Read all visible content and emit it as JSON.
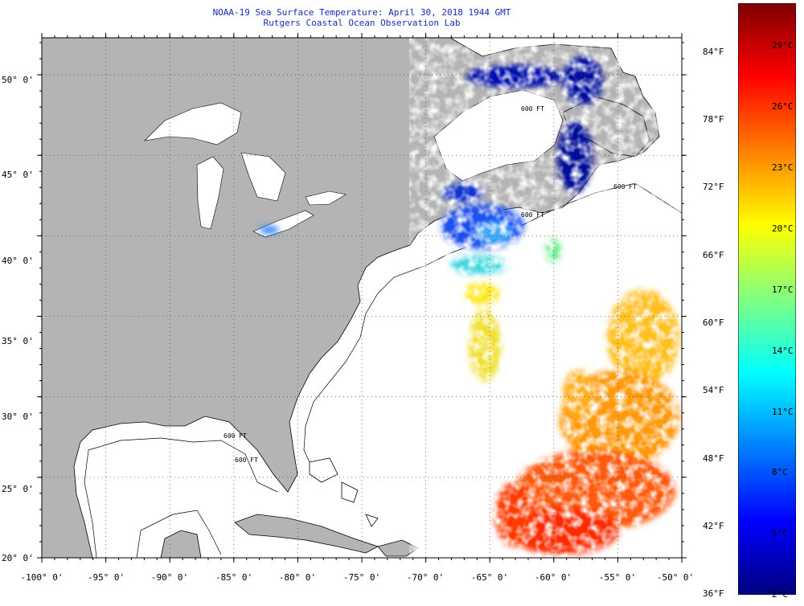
{
  "header": {
    "title_line1": "NOAA-19 Sea Surface Temperature:  April 30, 2018 1944 GMT",
    "title_line2": "Rutgers Coastal Ocean Observation Lab"
  },
  "map": {
    "extent": {
      "lon": [
        -100,
        -50
      ],
      "lat": [
        20,
        52.3
      ]
    },
    "lat_labels": [
      "50° 0'",
      "45° 0'",
      "40° 0'",
      "35° 0'",
      "30° 0'",
      "25° 0'",
      "20° 0'"
    ],
    "lat_values": [
      50,
      45,
      40,
      35,
      30,
      25,
      20
    ],
    "lon_labels": [
      "-100° 0'",
      "-95° 0'",
      "-90° 0'",
      "-85° 0'",
      "-80° 0'",
      "-75° 0'",
      "-70° 0'",
      "-65° 0'",
      "-60° 0'",
      "-55° 0'",
      "-50° 0'"
    ],
    "lon_values": [
      -100,
      -95,
      -90,
      -85,
      -80,
      -75,
      -70,
      -65,
      -60,
      -55,
      -50
    ],
    "colors": {
      "land": "#b4b4b4",
      "no_data": "#ffffff",
      "coast": "#000000",
      "grid": "#555555"
    },
    "isobath_labels": [
      "600 FT",
      "600 FT",
      "600 FT",
      "600 FT",
      "600 FT"
    ]
  },
  "colorbar": {
    "fahrenheit_labels": [
      "84°F",
      "78°F",
      "72°F",
      "66°F",
      "60°F",
      "54°F",
      "48°F",
      "42°F",
      "36°F"
    ],
    "fahrenheit_values": [
      84,
      78,
      72,
      66,
      60,
      54,
      48,
      42,
      36
    ],
    "celsius_labels": [
      "29°C",
      "26°C",
      "23°C",
      "20°C",
      "17°C",
      "14°C",
      "11°C",
      "8°C",
      "5°C",
      "2°C"
    ],
    "celsius_values": [
      29,
      26,
      23,
      20,
      17,
      14,
      11,
      8,
      5,
      2
    ],
    "range_c": [
      2,
      31
    ],
    "stops": [
      "#00007f",
      "#0000ff",
      "#0080ff",
      "#00ffff",
      "#80ff80",
      "#ffff00",
      "#ff8000",
      "#ff0000",
      "#7f0000"
    ]
  }
}
